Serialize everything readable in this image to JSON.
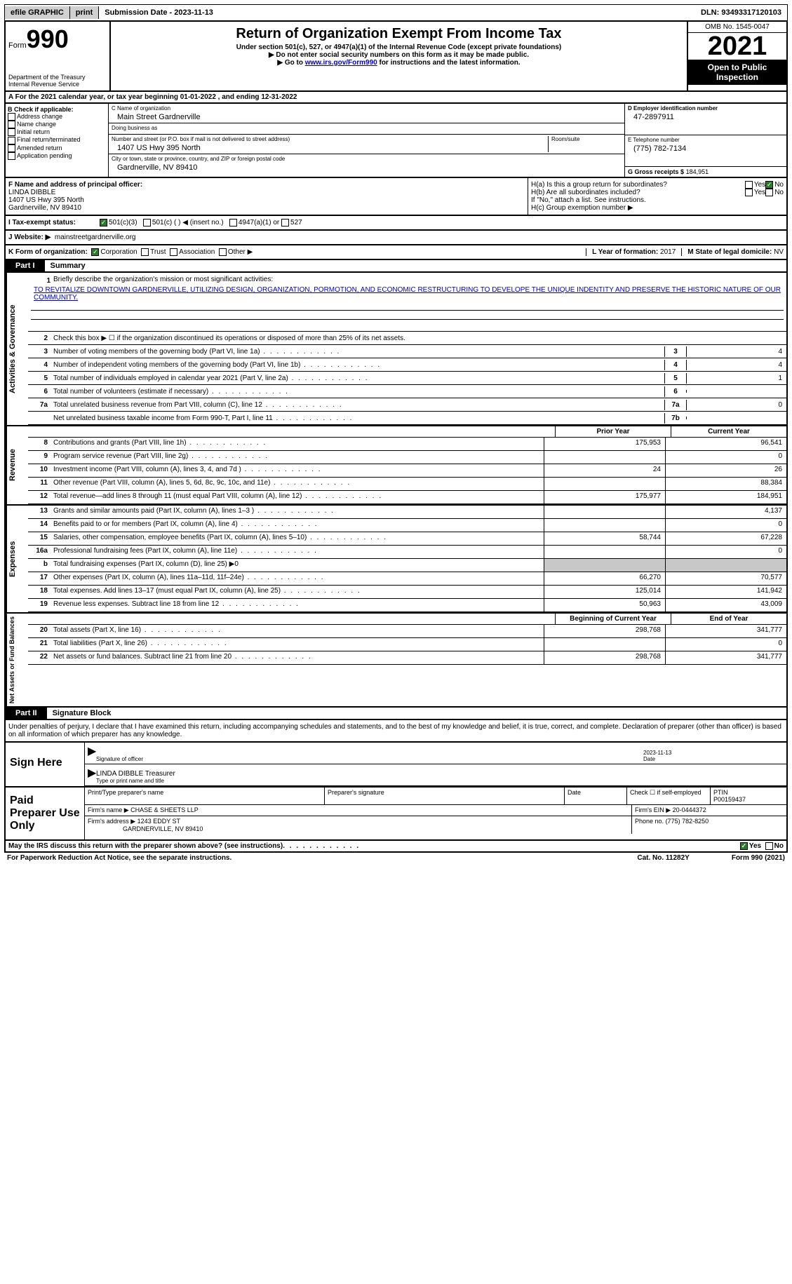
{
  "topbar": {
    "efile": "efile GRAPHIC",
    "print": "print",
    "submission": "Submission Date - 2023-11-13",
    "dln": "DLN: 93493317120103"
  },
  "header": {
    "form_word": "Form",
    "form_num": "990",
    "dept": "Department of the Treasury",
    "irs": "Internal Revenue Service",
    "title": "Return of Organization Exempt From Income Tax",
    "subtitle": "Under section 501(c), 527, or 4947(a)(1) of the Internal Revenue Code (except private foundations)",
    "instr1": "▶ Do not enter social security numbers on this form as it may be made public.",
    "instr2_pre": "▶ Go to ",
    "instr2_link": "www.irs.gov/Form990",
    "instr2_post": " for instructions and the latest information.",
    "omb": "OMB No. 1545-0047",
    "year": "2021",
    "open": "Open to Public Inspection"
  },
  "row_a": {
    "text": "A For the 2021 calendar year, or tax year beginning 01-01-2022    , and ending 12-31-2022"
  },
  "col_b": {
    "title": "B Check if applicable:",
    "items": [
      "Address change",
      "Name change",
      "Initial return",
      "Final return/terminated",
      "Amended return",
      "Application pending"
    ]
  },
  "col_c": {
    "name_lbl": "C Name of organization",
    "name": "Main Street Gardnerville",
    "dba_lbl": "Doing business as",
    "dba": "",
    "addr_lbl": "Number and street (or P.O. box if mail is not delivered to street address)",
    "room_lbl": "Room/suite",
    "addr": "1407 US Hwy 395 North",
    "city_lbl": "City or town, state or province, country, and ZIP or foreign postal code",
    "city": "Gardnerville, NV  89410"
  },
  "col_d": {
    "d_lbl": "D Employer identification number",
    "d_val": "47-2897911",
    "e_lbl": "E Telephone number",
    "e_val": "(775) 782-7134",
    "g_lbl": "G Gross receipts $",
    "g_val": "184,951"
  },
  "row_f": {
    "f_lbl": "F Name and address of principal officer:",
    "f_name": "LINDA DIBBLE",
    "f_addr1": "1407 US Hwy 395 North",
    "f_addr2": "Gardnerville, NV  89410"
  },
  "row_h": {
    "ha": "H(a)  Is this a group return for subordinates?",
    "hb": "H(b)  Are all subordinates included?",
    "hb_note": "If \"No,\" attach a list. See instructions.",
    "hc": "H(c)  Group exemption number ▶",
    "yes": "Yes",
    "no": "No"
  },
  "row_i": {
    "lbl": "I   Tax-exempt status:",
    "opt1": "501(c)(3)",
    "opt2": "501(c) (  ) ◀ (insert no.)",
    "opt3": "4947(a)(1) or",
    "opt4": "527"
  },
  "row_j": {
    "lbl": "J   Website: ▶",
    "val": "mainstreetgardnerville.org"
  },
  "row_k": {
    "lbl": "K Form of organization:",
    "opts": [
      "Corporation",
      "Trust",
      "Association",
      "Other ▶"
    ],
    "l_lbl": "L Year of formation:",
    "l_val": "2017",
    "m_lbl": "M State of legal domicile:",
    "m_val": "NV"
  },
  "part1": {
    "label": "Part I",
    "title": "Summary",
    "side1": "Activities & Governance",
    "side2": "Revenue",
    "side3": "Expenses",
    "side4": "Net Assets or Fund Balances",
    "q1": "Briefly describe the organization's mission or most significant activities:",
    "mission": "TO REVITALIZE DOWNTOWN GARDNERVILLE, UTILIZING DESIGN, ORGANIZATION, PORMOTION, AND ECONOMIC RESTRUCTURING TO DEVELOPE THE UNIQUE INDENTITY AND PRESERVE THE HISTORIC NATURE OF OUR COMMUNITY.",
    "q2": "Check this box ▶ ☐  if the organization discontinued its operations or disposed of more than 25% of its net assets.",
    "rows": [
      {
        "n": "3",
        "t": "Number of voting members of the governing body (Part VI, line 1a)",
        "box": "3",
        "v": "4"
      },
      {
        "n": "4",
        "t": "Number of independent voting members of the governing body (Part VI, line 1b)",
        "box": "4",
        "v": "4"
      },
      {
        "n": "5",
        "t": "Total number of individuals employed in calendar year 2021 (Part V, line 2a)",
        "box": "5",
        "v": "1"
      },
      {
        "n": "6",
        "t": "Total number of volunteers (estimate if necessary)",
        "box": "6",
        "v": ""
      },
      {
        "n": "7a",
        "t": "Total unrelated business revenue from Part VIII, column (C), line 12",
        "box": "7a",
        "v": "0"
      },
      {
        "n": "",
        "t": "Net unrelated business taxable income from Form 990-T, Part I, line 11",
        "box": "7b",
        "v": ""
      }
    ],
    "hdr_prior": "Prior Year",
    "hdr_current": "Current Year",
    "rev": [
      {
        "n": "8",
        "t": "Contributions and grants (Part VIII, line 1h)",
        "c1": "175,953",
        "c2": "96,541"
      },
      {
        "n": "9",
        "t": "Program service revenue (Part VIII, line 2g)",
        "c1": "",
        "c2": "0"
      },
      {
        "n": "10",
        "t": "Investment income (Part VIII, column (A), lines 3, 4, and 7d )",
        "c1": "24",
        "c2": "26"
      },
      {
        "n": "11",
        "t": "Other revenue (Part VIII, column (A), lines 5, 6d, 8c, 9c, 10c, and 11e)",
        "c1": "",
        "c2": "88,384"
      },
      {
        "n": "12",
        "t": "Total revenue—add lines 8 through 11 (must equal Part VIII, column (A), line 12)",
        "c1": "175,977",
        "c2": "184,951"
      }
    ],
    "exp": [
      {
        "n": "13",
        "t": "Grants and similar amounts paid (Part IX, column (A), lines 1–3 )",
        "c1": "",
        "c2": "4,137"
      },
      {
        "n": "14",
        "t": "Benefits paid to or for members (Part IX, column (A), line 4)",
        "c1": "",
        "c2": "0"
      },
      {
        "n": "15",
        "t": "Salaries, other compensation, employee benefits (Part IX, column (A), lines 5–10)",
        "c1": "58,744",
        "c2": "67,228"
      },
      {
        "n": "16a",
        "t": "Professional fundraising fees (Part IX, column (A), line 11e)",
        "c1": "",
        "c2": "0"
      },
      {
        "n": "b",
        "t": "Total fundraising expenses (Part IX, column (D), line 25) ▶0",
        "shaded": true
      },
      {
        "n": "17",
        "t": "Other expenses (Part IX, column (A), lines 11a–11d, 11f–24e)",
        "c1": "66,270",
        "c2": "70,577"
      },
      {
        "n": "18",
        "t": "Total expenses. Add lines 13–17 (must equal Part IX, column (A), line 25)",
        "c1": "125,014",
        "c2": "141,942"
      },
      {
        "n": "19",
        "t": "Revenue less expenses. Subtract line 18 from line 12",
        "c1": "50,963",
        "c2": "43,009"
      }
    ],
    "hdr_begin": "Beginning of Current Year",
    "hdr_end": "End of Year",
    "net": [
      {
        "n": "20",
        "t": "Total assets (Part X, line 16)",
        "c1": "298,768",
        "c2": "341,777"
      },
      {
        "n": "21",
        "t": "Total liabilities (Part X, line 26)",
        "c1": "",
        "c2": "0"
      },
      {
        "n": "22",
        "t": "Net assets or fund balances. Subtract line 21 from line 20",
        "c1": "298,768",
        "c2": "341,777"
      }
    ]
  },
  "part2": {
    "label": "Part II",
    "title": "Signature Block",
    "intro": "Under penalties of perjury, I declare that I have examined this return, including accompanying schedules and statements, and to the best of my knowledge and belief, it is true, correct, and complete. Declaration of preparer (other than officer) is based on all information of which preparer has any knowledge.",
    "sign_here": "Sign Here",
    "sig_officer": "Signature of officer",
    "sig_date": "2023-11-13",
    "date_lbl": "Date",
    "name_title": "LINDA DIBBLE  Treasurer",
    "type_lbl": "Type or print name and title",
    "paid": "Paid Preparer Use Only",
    "p_name_lbl": "Print/Type preparer's name",
    "p_sig_lbl": "Preparer's signature",
    "p_date_lbl": "Date",
    "p_check_lbl": "Check ☐ if self-employed",
    "ptin_lbl": "PTIN",
    "ptin": "P00159437",
    "firm_name_lbl": "Firm's name     ▶",
    "firm_name": "CHASE & SHEETS LLP",
    "firm_ein_lbl": "Firm's EIN ▶",
    "firm_ein": "20-0444372",
    "firm_addr_lbl": "Firm's address ▶",
    "firm_addr": "1243 EDDY ST",
    "firm_city": "GARDNERVILLE, NV  89410",
    "phone_lbl": "Phone no.",
    "phone": "(775) 782-8250",
    "discuss": "May the IRS discuss this return with the preparer shown above? (see instructions)",
    "yes": "Yes",
    "no": "No"
  },
  "footer": {
    "pra": "For Paperwork Reduction Act Notice, see the separate instructions.",
    "cat": "Cat. No. 11282Y",
    "form": "Form 990 (2021)"
  }
}
